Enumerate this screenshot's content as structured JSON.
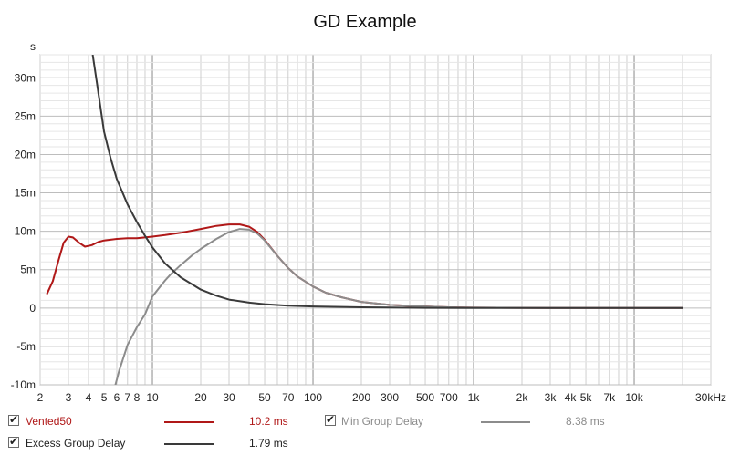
{
  "colors": {
    "vented50": "#b01818",
    "min_group_delay": "#8c8c8c",
    "excess_group_delay": "#3a3a3a",
    "grid_major": "#8a8a8a",
    "grid_minor": "#cfcfcf",
    "plot_bg": "#ffffff",
    "frame": "#9a9a9a"
  },
  "chart_data": {
    "type": "line",
    "title": "GD Example",
    "ylabel": "s",
    "xscale": "log",
    "xlim": [
      2,
      30000
    ],
    "ylim": [
      -0.01,
      0.033
    ],
    "grid": true,
    "legend_placement": "bottom",
    "xticks": [
      {
        "value": 2,
        "label": "2"
      },
      {
        "value": 3,
        "label": "3"
      },
      {
        "value": 4,
        "label": "4"
      },
      {
        "value": 5,
        "label": "5"
      },
      {
        "value": 6,
        "label": "6"
      },
      {
        "value": 7,
        "label": "7"
      },
      {
        "value": 8,
        "label": "8"
      },
      {
        "value": 10,
        "label": "10"
      },
      {
        "value": 20,
        "label": "20"
      },
      {
        "value": 30,
        "label": "30"
      },
      {
        "value": 50,
        "label": "50"
      },
      {
        "value": 70,
        "label": "70"
      },
      {
        "value": 100,
        "label": "100"
      },
      {
        "value": 200,
        "label": "200"
      },
      {
        "value": 300,
        "label": "300"
      },
      {
        "value": 500,
        "label": "500"
      },
      {
        "value": 700,
        "label": "700"
      },
      {
        "value": 1000,
        "label": "1k"
      },
      {
        "value": 2000,
        "label": "2k"
      },
      {
        "value": 3000,
        "label": "3k"
      },
      {
        "value": 4000,
        "label": "4k"
      },
      {
        "value": 5000,
        "label": "5k"
      },
      {
        "value": 7000,
        "label": "7k"
      },
      {
        "value": 10000,
        "label": "10k"
      },
      {
        "value": 30000,
        "label": "30kHz"
      }
    ],
    "yticks": [
      {
        "value": 0.03,
        "label": "30m"
      },
      {
        "value": 0.025,
        "label": "25m"
      },
      {
        "value": 0.02,
        "label": "20m"
      },
      {
        "value": 0.015,
        "label": "15m"
      },
      {
        "value": 0.01,
        "label": "10m"
      },
      {
        "value": 0.005,
        "label": "5m"
      },
      {
        "value": 0,
        "label": "0"
      },
      {
        "value": -0.005,
        "label": "-5m"
      },
      {
        "value": -0.01,
        "label": "-10m"
      }
    ],
    "series": [
      {
        "name": "Vented50",
        "color": "#b01818",
        "legend_value": "10.2 ms",
        "points": [
          [
            2.2,
            0.0018
          ],
          [
            2.4,
            0.0035
          ],
          [
            2.6,
            0.0062
          ],
          [
            2.8,
            0.0085
          ],
          [
            3.0,
            0.0093
          ],
          [
            3.2,
            0.0092
          ],
          [
            3.5,
            0.0085
          ],
          [
            3.8,
            0.008
          ],
          [
            4.2,
            0.0082
          ],
          [
            4.6,
            0.0086
          ],
          [
            5,
            0.0088
          ],
          [
            6,
            0.009
          ],
          [
            7,
            0.0091
          ],
          [
            8,
            0.0091
          ],
          [
            10,
            0.0093
          ],
          [
            12,
            0.0095
          ],
          [
            15,
            0.0098
          ],
          [
            20,
            0.0103
          ],
          [
            25,
            0.0107
          ],
          [
            30,
            0.0109
          ],
          [
            35,
            0.0109
          ],
          [
            40,
            0.0106
          ],
          [
            45,
            0.0099
          ],
          [
            50,
            0.0089
          ],
          [
            60,
            0.0068
          ],
          [
            70,
            0.0052
          ],
          [
            80,
            0.0041
          ],
          [
            100,
            0.0028
          ],
          [
            120,
            0.002
          ],
          [
            150,
            0.0014
          ],
          [
            200,
            0.0008
          ],
          [
            300,
            0.0004
          ],
          [
            500,
            0.0002
          ],
          [
            700,
            0.0001
          ],
          [
            1000,
            5e-05
          ],
          [
            3000,
            0.0
          ],
          [
            10000,
            0.0
          ],
          [
            20000,
            0.0
          ]
        ]
      },
      {
        "name": "Min Group Delay",
        "color": "#8c8c8c",
        "legend_value": "8.38 ms",
        "points": [
          [
            5.8,
            -0.0105
          ],
          [
            6.2,
            -0.0082
          ],
          [
            7,
            -0.0048
          ],
          [
            8,
            -0.0025
          ],
          [
            9,
            -0.0008
          ],
          [
            10,
            0.0015
          ],
          [
            11,
            0.0026
          ],
          [
            12,
            0.0036
          ],
          [
            13,
            0.0044
          ],
          [
            15,
            0.0056
          ],
          [
            18,
            0.007
          ],
          [
            20,
            0.0077
          ],
          [
            25,
            0.009
          ],
          [
            30,
            0.0099
          ],
          [
            35,
            0.0103
          ],
          [
            40,
            0.0102
          ],
          [
            45,
            0.0097
          ],
          [
            50,
            0.0088
          ],
          [
            60,
            0.0068
          ],
          [
            70,
            0.0052
          ],
          [
            80,
            0.0041
          ],
          [
            100,
            0.0028
          ],
          [
            120,
            0.002
          ],
          [
            150,
            0.0014
          ],
          [
            200,
            0.0008
          ],
          [
            300,
            0.0004
          ],
          [
            500,
            0.0002
          ],
          [
            700,
            0.0001
          ],
          [
            1000,
            5e-05
          ],
          [
            3000,
            0.0
          ],
          [
            10000,
            0.0
          ],
          [
            20000,
            0.0
          ]
        ]
      },
      {
        "name": "Excess Group Delay",
        "color": "#3a3a3a",
        "legend_value": "1.79 ms",
        "points": [
          [
            4.25,
            0.033
          ],
          [
            4.5,
            0.0295
          ],
          [
            5,
            0.023
          ],
          [
            5.5,
            0.0195
          ],
          [
            6,
            0.0168
          ],
          [
            7,
            0.0135
          ],
          [
            8,
            0.0112
          ],
          [
            9,
            0.0094
          ],
          [
            10,
            0.0079
          ],
          [
            12,
            0.0058
          ],
          [
            15,
            0.004
          ],
          [
            20,
            0.0024
          ],
          [
            25,
            0.0016
          ],
          [
            30,
            0.0011
          ],
          [
            40,
            0.0007
          ],
          [
            50,
            0.0005
          ],
          [
            70,
            0.0003
          ],
          [
            100,
            0.0002
          ],
          [
            200,
            0.0001
          ],
          [
            500,
            2e-05
          ],
          [
            1000,
            0.0
          ],
          [
            10000,
            0.0
          ],
          [
            20000,
            0.0
          ]
        ]
      }
    ]
  }
}
